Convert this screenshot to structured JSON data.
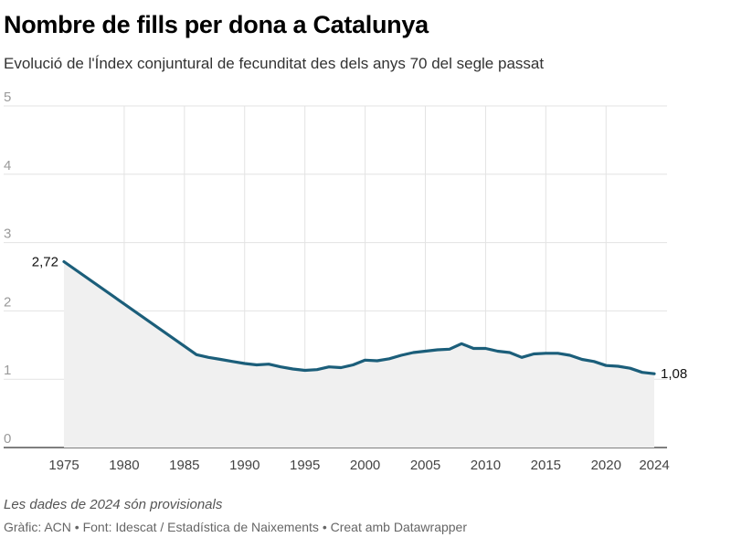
{
  "header": {
    "title": "Nombre de fills per dona a Catalunya",
    "subtitle": "Evolució de l'Índex conjuntural de fecunditat des dels anys 70 del segle passat"
  },
  "footer": {
    "note": "Les dades de 2024 són provisionals",
    "credit": "Gràfic: ACN • Font: Idescat / Estadística de Naixements • Creat amb Datawrapper"
  },
  "colors": {
    "line": "#1b5e7a",
    "area": "#f0f0f0",
    "grid": "#e3e3e3",
    "axis": "#333333"
  },
  "chart_data": {
    "type": "area",
    "title": "Nombre de fills per dona a Catalunya",
    "xlabel": "",
    "ylabel": "",
    "xlim": [
      1975,
      2024
    ],
    "ylim": [
      0,
      5
    ],
    "grid": true,
    "x_ticks": [
      1975,
      1980,
      1985,
      1990,
      1995,
      2000,
      2005,
      2010,
      2015,
      2020,
      2024
    ],
    "y_ticks": [
      0,
      1,
      2,
      3,
      4,
      5
    ],
    "decimal_separator": ",",
    "start_label": "2,72",
    "end_label": "1,08",
    "x": [
      1975,
      1986,
      1987,
      1988,
      1989,
      1990,
      1991,
      1992,
      1993,
      1994,
      1995,
      1996,
      1997,
      1998,
      1999,
      2000,
      2001,
      2002,
      2003,
      2004,
      2005,
      2006,
      2007,
      2008,
      2009,
      2010,
      2011,
      2012,
      2013,
      2014,
      2015,
      2016,
      2017,
      2018,
      2019,
      2020,
      2021,
      2022,
      2023,
      2024
    ],
    "values": [
      2.72,
      1.36,
      1.32,
      1.29,
      1.26,
      1.23,
      1.21,
      1.22,
      1.18,
      1.15,
      1.13,
      1.14,
      1.18,
      1.17,
      1.21,
      1.28,
      1.27,
      1.3,
      1.35,
      1.39,
      1.41,
      1.43,
      1.44,
      1.52,
      1.45,
      1.45,
      1.41,
      1.39,
      1.32,
      1.37,
      1.38,
      1.38,
      1.35,
      1.29,
      1.26,
      1.2,
      1.19,
      1.16,
      1.1,
      1.08
    ]
  }
}
